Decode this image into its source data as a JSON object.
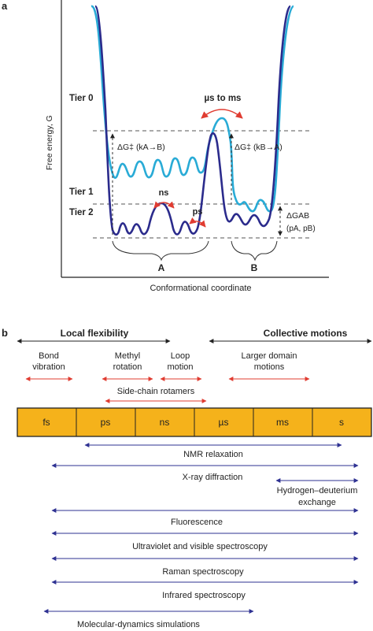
{
  "panel_a": {
    "panel_label": "a",
    "y_axis_label": "Free energy, G",
    "x_axis_label": "Conformational coordinate",
    "tier0": "Tier 0",
    "tier1": "Tier 1",
    "tier2": "Tier 2",
    "timescale_us_ms": "µs to ms",
    "timescale_ns": "ns",
    "timescale_ps": "ps",
    "dg_a_to_b": "ΔG‡ (kA→B)",
    "dg_b_to_a": "ΔG‡ (kB→A)",
    "dg_ab": "ΔGAB",
    "dg_ab_params": "(pA, pB)",
    "state_a": "A",
    "state_b": "B",
    "colors": {
      "tier1_curve": "#29abd6",
      "tier2_curve": "#2b2b8c",
      "arrow_red": "#e03c31"
    }
  },
  "panel_b": {
    "panel_label": "b",
    "local_flexibility": "Local flexibility",
    "collective_motions": "Collective motions",
    "motions": {
      "bond_vibration_1": "Bond",
      "bond_vibration_2": "vibration",
      "methyl_rotation_1": "Methyl",
      "methyl_rotation_2": "rotation",
      "loop_motion_1": "Loop",
      "loop_motion_2": "motion",
      "larger_domain_1": "Larger domain",
      "larger_domain_2": "motions",
      "side_chain_rotamers": "Side-chain rotamers"
    },
    "timescale_cells": [
      "fs",
      "ps",
      "ns",
      "µs",
      "ms",
      "s"
    ],
    "timescale_bar_color": "#f5b21b",
    "techniques": [
      {
        "label": "NMR relaxation"
      },
      {
        "label": "X-ray diffraction"
      },
      {
        "label_1": "Hydrogen–deuterium",
        "label_2": "exchange"
      },
      {
        "label": "Fluorescence"
      },
      {
        "label": "Ultraviolet and visible spectroscopy"
      },
      {
        "label": "Raman spectroscopy"
      },
      {
        "label": "Infrared spectroscopy"
      },
      {
        "label": "Molecular-dynamics simulations"
      }
    ],
    "colors": {
      "technique_arrow": "#2e3192",
      "motion_arrow": "#e03c31"
    }
  }
}
